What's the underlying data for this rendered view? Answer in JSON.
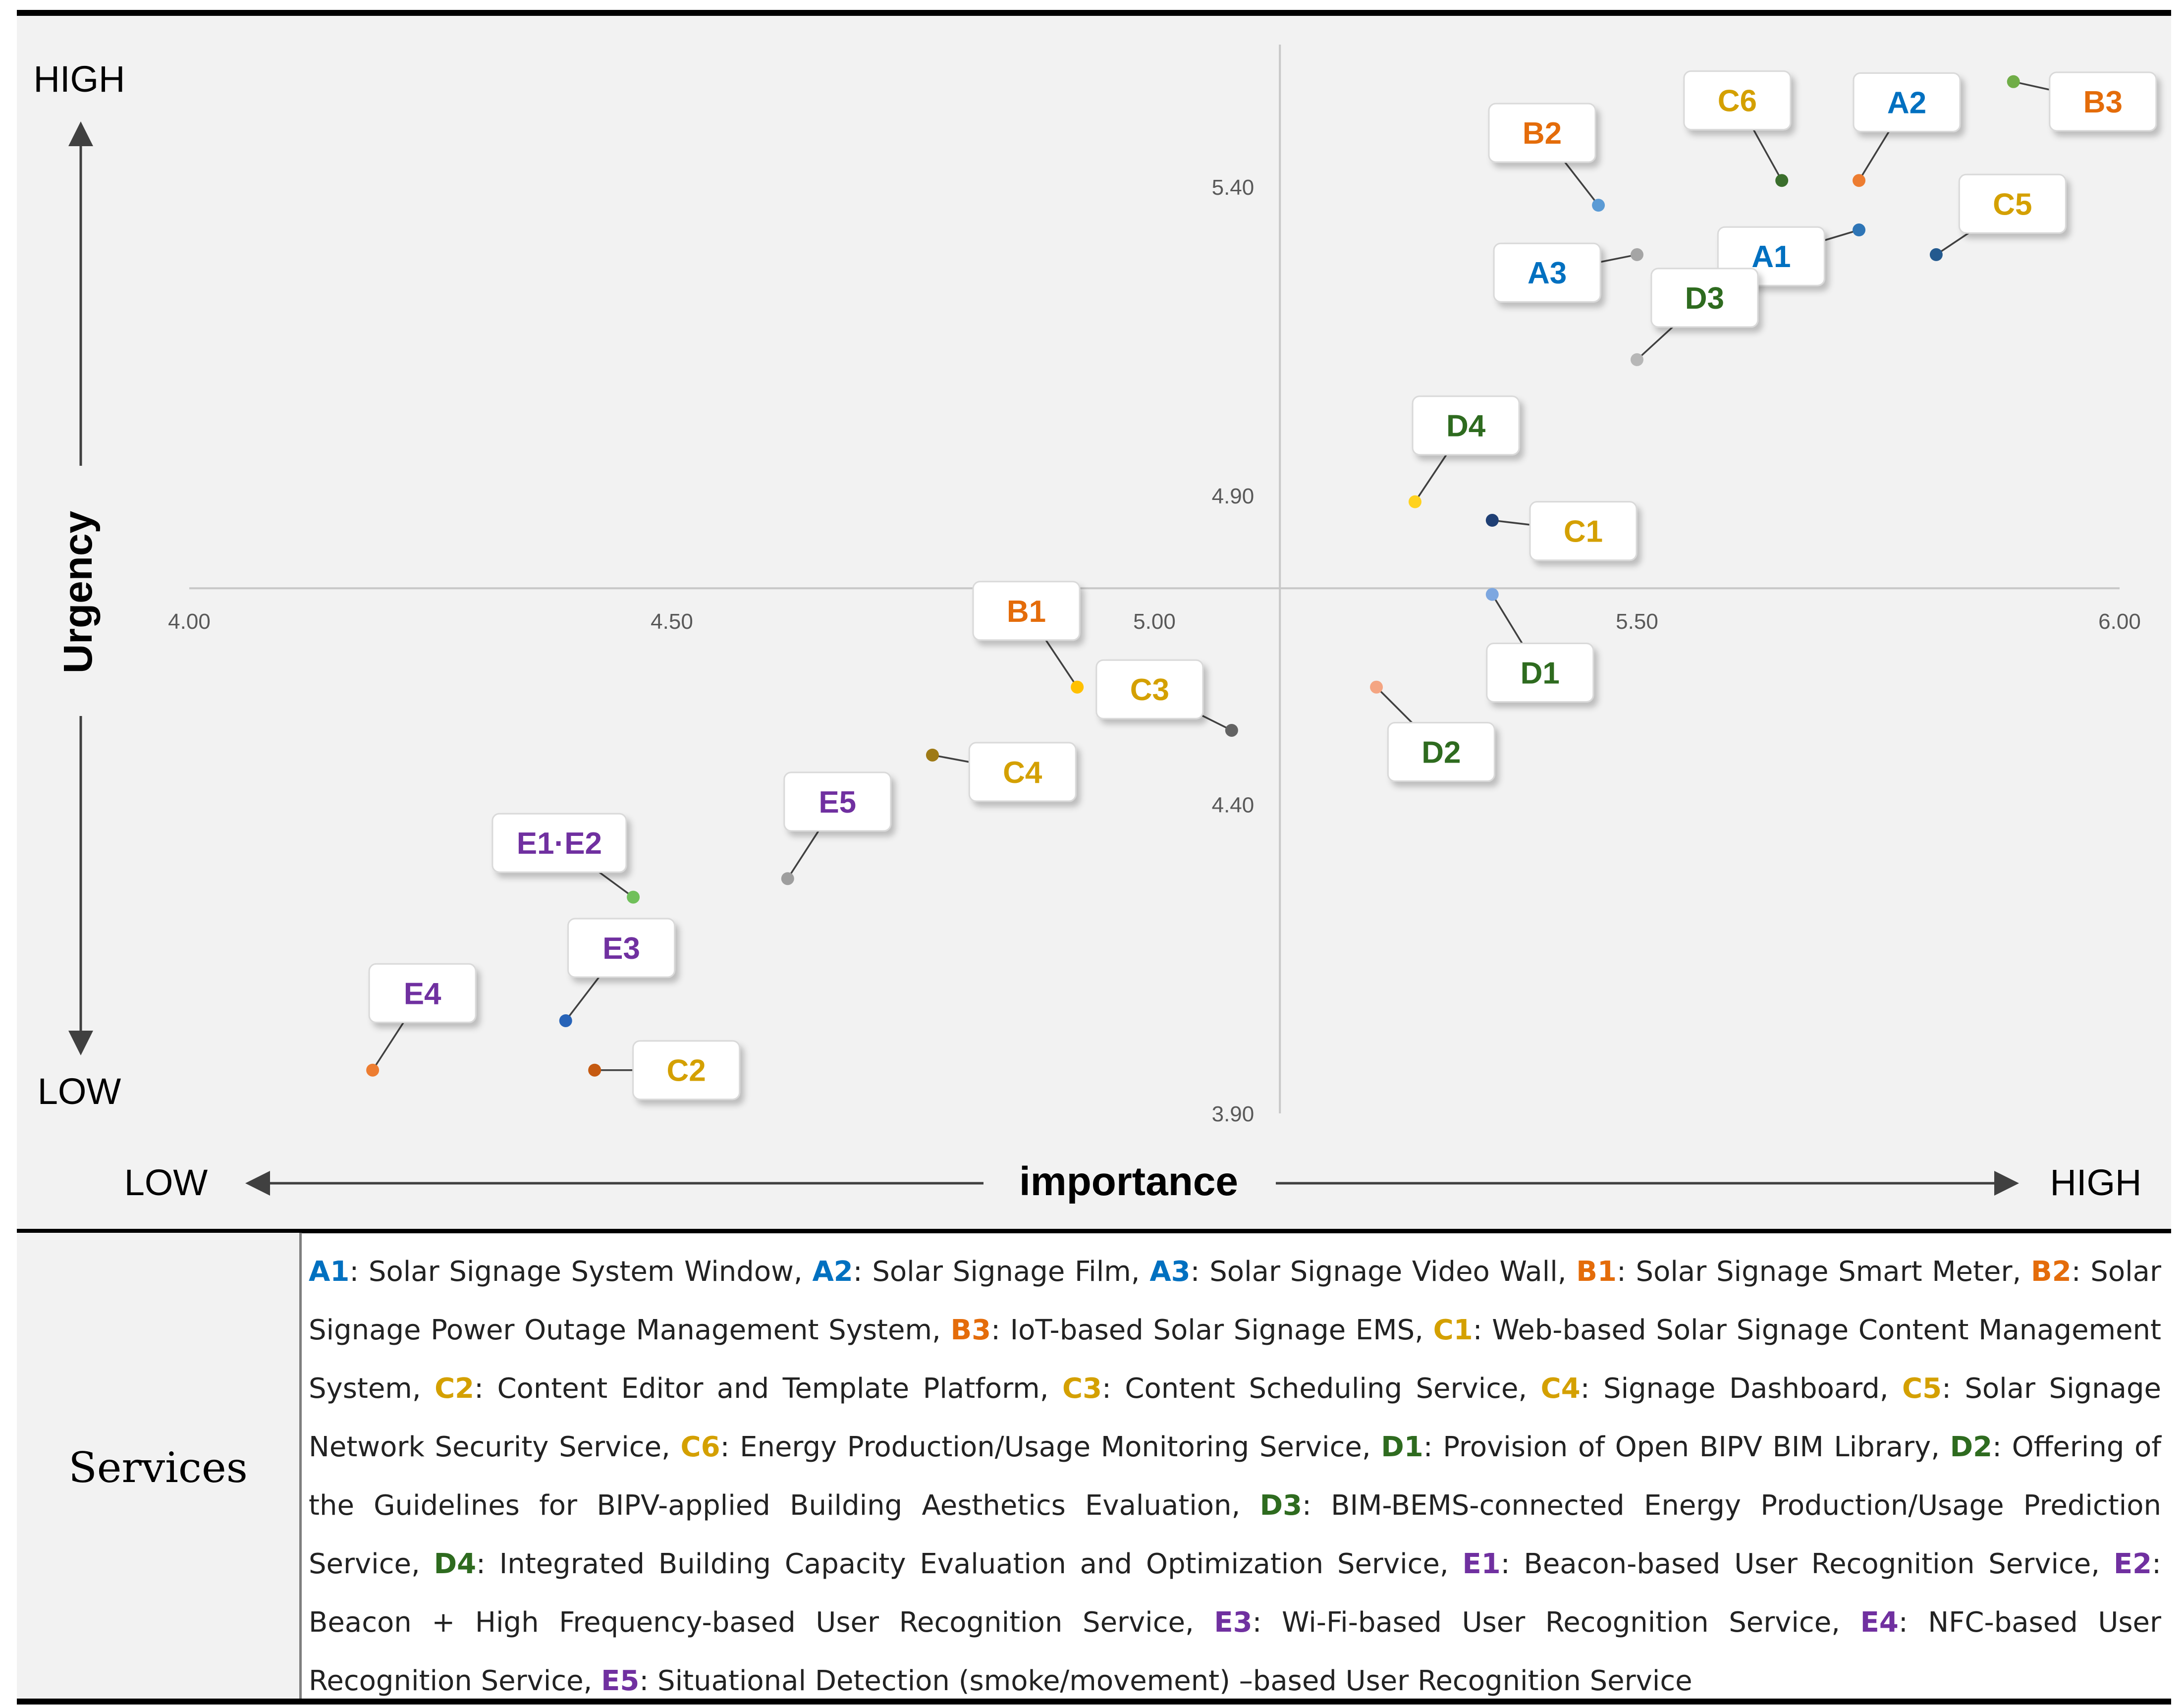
{
  "chart_data": {
    "type": "scatter",
    "title": "",
    "xlabel": "importance",
    "ylabel": "Urgency",
    "x_low_label": "LOW",
    "x_high_label": "HIGH",
    "y_low_label": "LOW",
    "y_high_label": "HIGH",
    "xlim": [
      4.0,
      6.0
    ],
    "ylim": [
      3.9,
      5.63
    ],
    "x_ticks": [
      "4.00",
      "4.50",
      "5.00",
      "5.50",
      "6.00"
    ],
    "y_ticks": [
      "3.90",
      "4.40",
      "4.90",
      "5.40"
    ],
    "cross_x": 5.13,
    "cross_y": 4.75,
    "grid": false,
    "points": [
      {
        "label": "A1",
        "group": "A",
        "x": 5.73,
        "y": 5.33,
        "color": "#2e75b6",
        "box_color": "#0070c0"
      },
      {
        "label": "A2",
        "group": "A",
        "x": 5.73,
        "y": 5.41,
        "color": "#ed7d31",
        "box_color": "#0070c0"
      },
      {
        "label": "A3",
        "group": "A",
        "x": 5.5,
        "y": 5.29,
        "color": "#a5a5a5",
        "box_color": "#0070c0"
      },
      {
        "label": "B1",
        "group": "B",
        "x": 4.92,
        "y": 4.59,
        "color": "#ffc000",
        "box_color": "#e46c0a"
      },
      {
        "label": "B2",
        "group": "B",
        "x": 5.46,
        "y": 5.37,
        "color": "#5b9bd5",
        "box_color": "#e46c0a"
      },
      {
        "label": "B3",
        "group": "B",
        "x": 5.89,
        "y": 5.57,
        "color": "#70ad47",
        "box_color": "#e46c0a"
      },
      {
        "label": "C1",
        "group": "C",
        "x": 5.35,
        "y": 4.86,
        "color": "#1f3f74",
        "box_color": "#d4a000"
      },
      {
        "label": "C2",
        "group": "C",
        "x": 4.42,
        "y": 3.97,
        "color": "#c55a11",
        "box_color": "#d4a000"
      },
      {
        "label": "C3",
        "group": "C",
        "x": 5.08,
        "y": 4.52,
        "color": "#636363",
        "box_color": "#d4a000"
      },
      {
        "label": "C4",
        "group": "C",
        "x": 4.77,
        "y": 4.48,
        "color": "#9e7a16",
        "box_color": "#d4a000"
      },
      {
        "label": "C5",
        "group": "C",
        "x": 5.81,
        "y": 5.29,
        "color": "#245a8f",
        "box_color": "#d4a000"
      },
      {
        "label": "C6",
        "group": "C",
        "x": 5.65,
        "y": 5.41,
        "color": "#3a6e2c",
        "box_color": "#d4a000"
      },
      {
        "label": "D1",
        "group": "D",
        "x": 5.35,
        "y": 4.74,
        "color": "#7da7e0",
        "box_color": "#2e6b1f"
      },
      {
        "label": "D2",
        "group": "D",
        "x": 5.23,
        "y": 4.59,
        "color": "#f4a582",
        "box_color": "#2e6b1f"
      },
      {
        "label": "D3",
        "group": "D",
        "x": 5.5,
        "y": 5.12,
        "color": "#b7b7b7",
        "box_color": "#2e6b1f"
      },
      {
        "label": "D4",
        "group": "D",
        "x": 5.27,
        "y": 4.89,
        "color": "#ffd21f",
        "box_color": "#2e6b1f"
      },
      {
        "label": "E1·E2",
        "group": "E",
        "x": 4.46,
        "y": 4.25,
        "color": "#70c05a",
        "box_color": "#7030a0"
      },
      {
        "label": "E3",
        "group": "E",
        "x": 4.39,
        "y": 4.05,
        "color": "#2763b8",
        "box_color": "#7030a0"
      },
      {
        "label": "E4",
        "group": "E",
        "x": 4.19,
        "y": 3.97,
        "color": "#ed7d31",
        "box_color": "#7030a0"
      },
      {
        "label": "E5",
        "group": "E",
        "x": 4.62,
        "y": 4.28,
        "color": "#9e9e9e",
        "box_color": "#7030a0"
      }
    ]
  },
  "legend": {
    "heading": "Services",
    "entries": [
      {
        "code": "A1",
        "text": ": Solar Signage System Window, ",
        "color": "#0070c0"
      },
      {
        "code": "A2",
        "text": ": Solar Signage Film, ",
        "color": "#0070c0"
      },
      {
        "code": "A3",
        "text": ": Solar Signage Video Wall, ",
        "color": "#0070c0"
      },
      {
        "code": "B1",
        "text": ": Solar Signage Smart Meter, ",
        "color": "#e46c0a"
      },
      {
        "code": "B2",
        "text": ": Solar Signage Power Outage Management System, ",
        "color": "#e46c0a"
      },
      {
        "code": "B3",
        "text": ": IoT-based Solar Signage EMS, ",
        "color": "#e46c0a"
      },
      {
        "code": "C1",
        "text": ": Web-based Solar Signage Content Management System, ",
        "color": "#d4a000"
      },
      {
        "code": "C2",
        "text": ": Content Editor and Template Platform, ",
        "color": "#d4a000"
      },
      {
        "code": "C3",
        "text": ": Content Scheduling Service, ",
        "color": "#d4a000"
      },
      {
        "code": "C4",
        "text": ": Signage Dashboard, ",
        "color": "#d4a000"
      },
      {
        "code": "C5",
        "text": ": Solar Signage Network Security Service, ",
        "color": "#d4a000"
      },
      {
        "code": "C6",
        "text": ": Energy Production/Usage Monitoring Service, ",
        "color": "#d4a000"
      },
      {
        "code": "D1",
        "text": ": Provision of Open BIPV BIM Library, ",
        "color": "#2e6b1f"
      },
      {
        "code": "D2",
        "text": ": Offering of the Guidelines for BIPV-applied Building Aesthetics Evaluation, ",
        "color": "#2e6b1f"
      },
      {
        "code": "D3",
        "text": ": BIM-BEMS-connected Energy Production/Usage Prediction Service, ",
        "color": "#2e6b1f"
      },
      {
        "code": "D4",
        "text": ": Integrated Building Capacity Evaluation and Optimization Service, ",
        "color": "#2e6b1f"
      },
      {
        "code": "E1",
        "text": ": Beacon-based User Recognition Service, ",
        "color": "#7030a0"
      },
      {
        "code": "E2",
        "text": ": Beacon + High Frequency-based User Recognition Service, ",
        "color": "#7030a0"
      },
      {
        "code": "E3",
        "text": ": Wi-Fi-based User Recognition Service, ",
        "color": "#7030a0"
      },
      {
        "code": "E4",
        "text": ": NFC-based User Recognition Service, ",
        "color": "#7030a0"
      },
      {
        "code": "E5",
        "text": ": Situational Detection (smoke/movement) –based User Recognition Service",
        "color": "#7030a0"
      }
    ]
  }
}
